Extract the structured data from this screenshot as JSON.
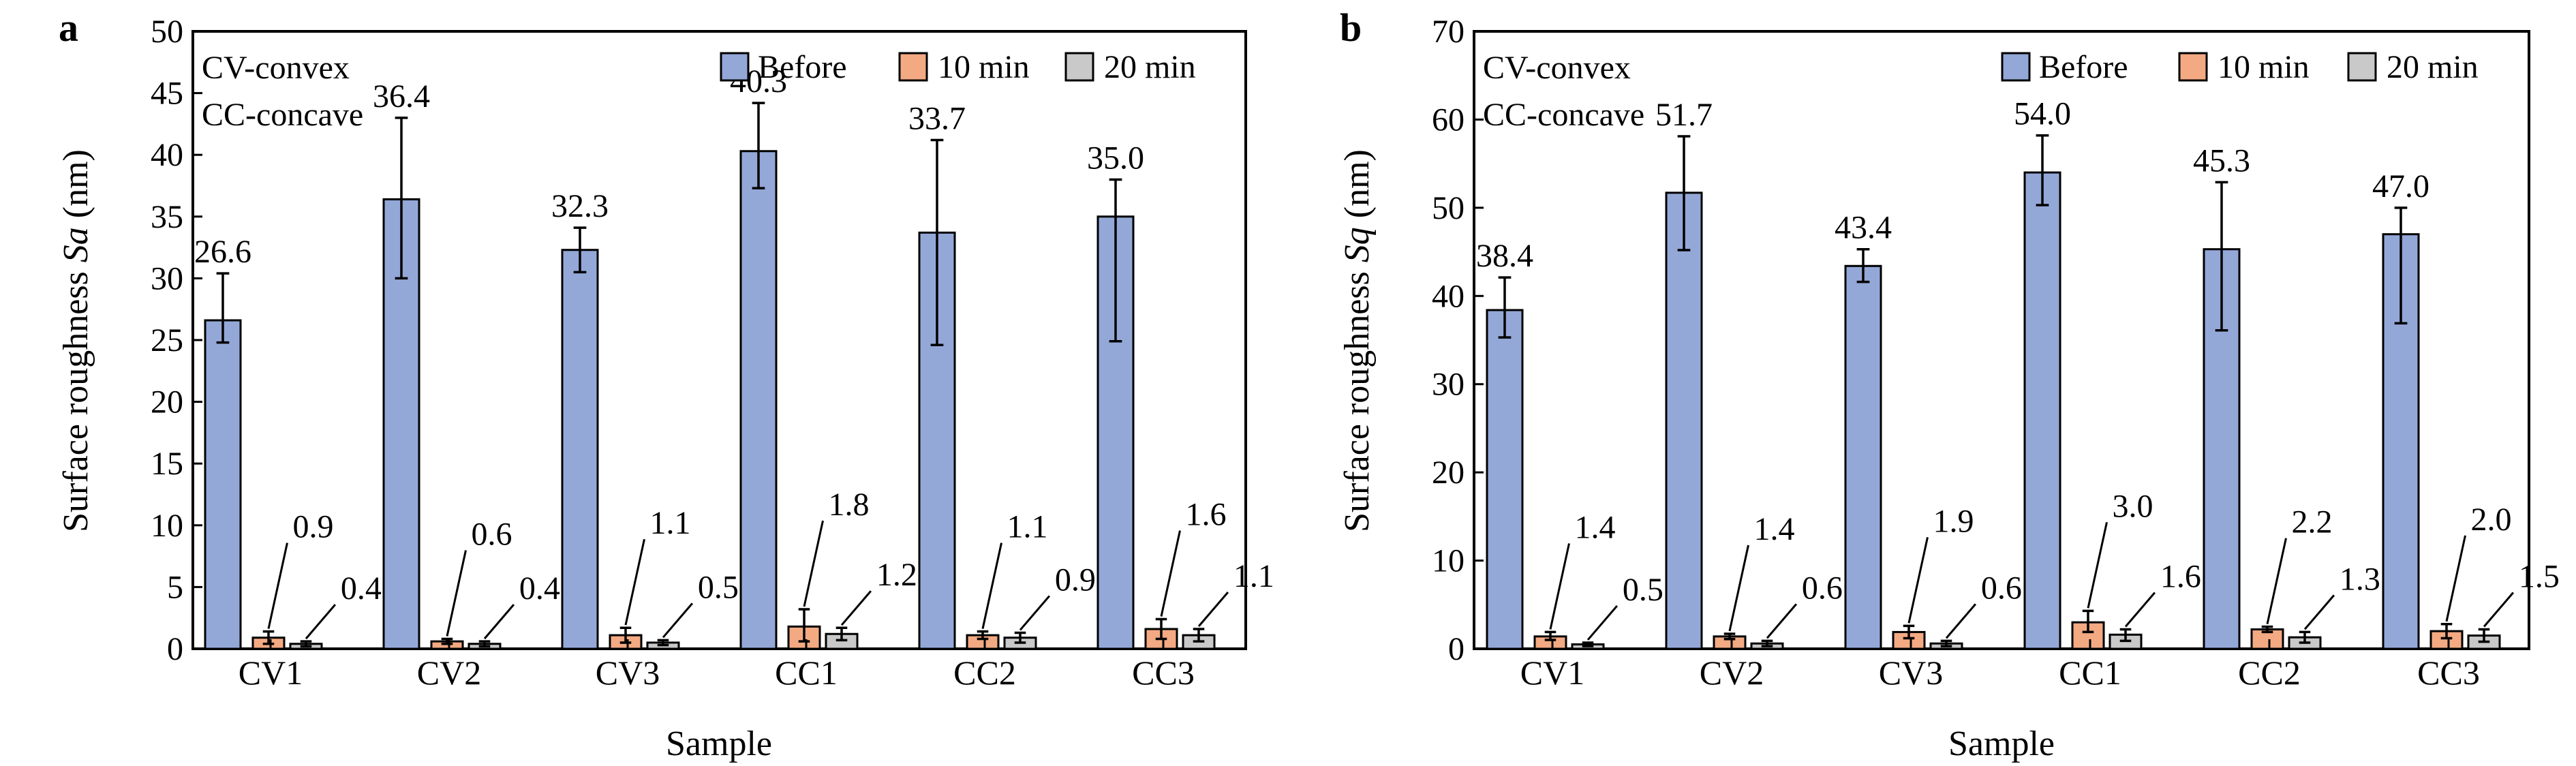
{
  "panels": [
    {
      "label": "a"
    },
    {
      "label": "b"
    }
  ],
  "colors": {
    "before": "#94a8d8",
    "min10": "#f3aa83",
    "min20": "#c9c9c9",
    "stroke": "#000000"
  },
  "chart_data": [
    {
      "type": "bar",
      "panel": "a",
      "xlabel": "Sample",
      "ylabel": "Surface roughness Sa (nm)",
      "ylabel_plain": "Surface roughness ",
      "ylabel_italic": "Sa",
      "ylabel_unit": " (nm)",
      "ylim": [
        0,
        50
      ],
      "yticks": [
        0,
        5,
        10,
        15,
        20,
        25,
        30,
        35,
        40,
        45,
        50
      ],
      "categories": [
        "CV1",
        "CV2",
        "CV3",
        "CC1",
        "CC2",
        "CC3"
      ],
      "annotations": [
        "CV-convex",
        "CC-concave"
      ],
      "legend_position": "top-right",
      "series": [
        {
          "name": "Before",
          "values": [
            26.6,
            36.4,
            32.3,
            40.3,
            33.7,
            35.0
          ],
          "err_low": [
            24.8,
            30.0,
            30.5,
            37.3,
            24.6,
            24.9
          ],
          "err_high": [
            30.4,
            43.0,
            34.1,
            44.2,
            41.2,
            38.0
          ],
          "labels": [
            "26.6",
            "36.4",
            "32.3",
            "40.3",
            "33.7",
            "35.0"
          ]
        },
        {
          "name": "10 min",
          "values": [
            0.9,
            0.6,
            1.1,
            1.8,
            1.1,
            1.6
          ],
          "err_low": [
            0.4,
            0.4,
            0.5,
            0.6,
            0.8,
            0.8
          ],
          "err_high": [
            1.4,
            0.8,
            1.7,
            3.2,
            1.4,
            2.4
          ],
          "labels": [
            "0.9",
            "0.6",
            "1.1",
            "1.8",
            "1.1",
            "1.6"
          ]
        },
        {
          "name": "20 min",
          "values": [
            0.4,
            0.4,
            0.5,
            1.2,
            0.9,
            1.1
          ],
          "err_low": [
            0.2,
            0.2,
            0.3,
            0.7,
            0.5,
            0.6
          ],
          "err_high": [
            0.6,
            0.6,
            0.7,
            1.7,
            1.3,
            1.6
          ],
          "labels": [
            "0.4",
            "0.4",
            "0.5",
            "1.2",
            "0.9",
            "1.1"
          ]
        }
      ]
    },
    {
      "type": "bar",
      "panel": "b",
      "xlabel": "Sample",
      "ylabel": "Surface roughness Sq (nm)",
      "ylabel_plain": "Surface roughness ",
      "ylabel_italic": "Sq",
      "ylabel_unit": " (nm)",
      "ylim": [
        0,
        70
      ],
      "yticks": [
        0,
        10,
        20,
        30,
        40,
        50,
        60,
        70
      ],
      "categories": [
        "CV1",
        "CV2",
        "CV3",
        "CC1",
        "CC2",
        "CC3"
      ],
      "annotations": [
        "CV-convex",
        "CC-concave"
      ],
      "legend_position": "top-right",
      "series": [
        {
          "name": "Before",
          "values": [
            38.4,
            51.7,
            43.4,
            54.0,
            45.3,
            47.0
          ],
          "err_low": [
            35.3,
            45.2,
            41.6,
            50.3,
            36.1,
            36.9
          ],
          "err_high": [
            42.1,
            58.1,
            45.3,
            58.2,
            52.9,
            50.0
          ],
          "labels": [
            "38.4",
            "51.7",
            "43.4",
            "54.0",
            "45.3",
            "47.0"
          ]
        },
        {
          "name": "10 min",
          "values": [
            1.4,
            1.4,
            1.9,
            3.0,
            2.2,
            2.0
          ],
          "err_low": [
            1.0,
            1.1,
            1.2,
            1.9,
            1.9,
            1.2
          ],
          "err_high": [
            1.9,
            1.7,
            2.6,
            4.3,
            2.5,
            2.8
          ],
          "labels": [
            "1.4",
            "1.4",
            "1.9",
            "3.0",
            "2.2",
            "2.0"
          ]
        },
        {
          "name": "20 min",
          "values": [
            0.5,
            0.6,
            0.6,
            1.6,
            1.3,
            1.5
          ],
          "err_low": [
            0.3,
            0.3,
            0.3,
            0.9,
            0.7,
            0.8
          ],
          "err_high": [
            0.7,
            0.9,
            0.9,
            2.2,
            1.9,
            2.2
          ],
          "labels": [
            "0.5",
            "0.6",
            "0.6",
            "1.6",
            "1.3",
            "1.5"
          ]
        }
      ]
    }
  ]
}
